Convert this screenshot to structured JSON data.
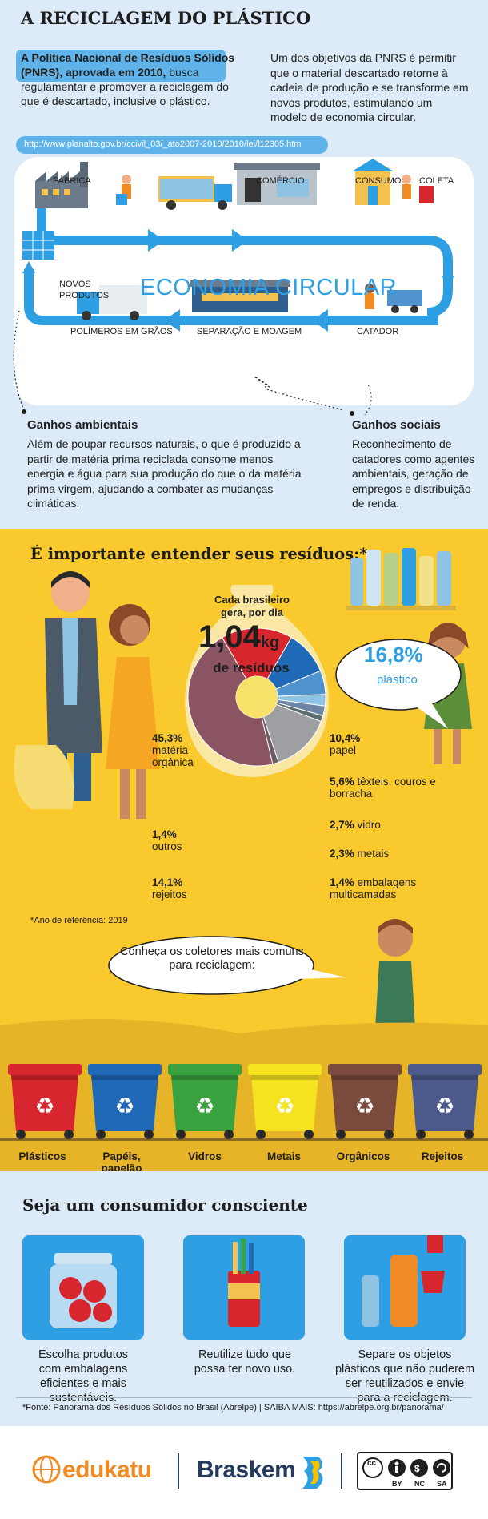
{
  "header": {
    "title": "A RECICLAGEM DO PLÁSTICO",
    "pnrs_bold": "A Política Nacional de Resíduos Sólidos (PNRS), aprovada em 2010,",
    "pnrs_rest": "busca regulamentar e promover a reciclagem do que é descartado, inclusive o plástico.",
    "objective": "Um dos objetivos da PNRS é permitir que o material descartado retorne à cadeia de produção e se transforme em novos produtos, estimulando um modelo de economia circular.",
    "url": "http://www.planalto.gov.br/ccivil_03/_ato2007-2010/2010/lei/l12305.htm"
  },
  "cycle": {
    "center_label": "ECONOMIA CIRCULAR",
    "stages": {
      "fabrica": "FÁBRICA",
      "comercio": "COMÉRCIO",
      "consumo": "CONSUMO",
      "coleta": "COLETA",
      "novos_produtos": "NOVOS PRODUTOS",
      "polimeros": "POLÍMEROS EM GRÃOS",
      "separacao": "SEPARAÇÃO E MOAGEM",
      "catador": "CATADOR"
    }
  },
  "gains": {
    "env_title": "Ganhos ambientais",
    "env_text": "Além de poupar recursos naturais, o que é produzido a partir de matéria prima reciclada consome menos energia e água para sua produção do que o da matéria prima virgem, ajudando a combater as mudanças climáticas.",
    "soc_title": "Ganhos sociais",
    "soc_text": "Reconhecimento de catadores como agentes ambientais, geração de empregos e distribuição de renda."
  },
  "waste": {
    "title": "É importante entender seus resíduos:*",
    "percap_a": "Cada brasileiro gera, por dia",
    "percap_value": "1,04",
    "percap_unit": "kg",
    "percap_c": "de resíduos",
    "plastic_pct": "16,8%",
    "plastic_lbl": "plástico",
    "note": "*Ano de referência: 2019",
    "bubble": "Conheça os coletores mais comuns para reciclagem:",
    "labels": {
      "organica_pct": "45,3%",
      "organica_txt": "matéria orgânica",
      "outros_pct": "1,4%",
      "outros_txt": "outros",
      "rejeitos_pct": "14,1%",
      "rejeitos_txt": "rejeitos",
      "papel_pct": "10,4%",
      "papel_txt": "papel",
      "texteis_pct": "5,6%",
      "texteis_txt": "têxteis, couros e borracha",
      "vidro_pct": "2,7%",
      "vidro_txt": "vidro",
      "metais_pct": "2,3%",
      "metais_txt": "metais",
      "multi_pct": "1,4%",
      "multi_txt": "embalagens multicamadas"
    },
    "bins": [
      "Plásticos",
      "Papéis, papelão",
      "Vidros",
      "Metais",
      "Orgânicos",
      "Rejeitos"
    ],
    "bin_colors": [
      "#d7262e",
      "#1f69b7",
      "#3aa23f",
      "#f5e31f",
      "#7a4a3c",
      "#4b5a8a"
    ]
  },
  "chart_data": {
    "type": "pie",
    "title": "",
    "categories": [
      "plástico",
      "papel",
      "têxteis, couros e borracha",
      "vidro",
      "metais",
      "embalagens multicamadas",
      "rejeitos",
      "outros",
      "matéria orgânica"
    ],
    "values": [
      16.8,
      10.4,
      5.6,
      2.7,
      2.3,
      1.4,
      14.1,
      1.4,
      45.3
    ],
    "colors": [
      "#d7262e",
      "#1f69b7",
      "#4f93cf",
      "#8fc3e4",
      "#6d86a8",
      "#5c6e6f",
      "#9e9fa3",
      "#6b5b63",
      "#8a5462"
    ],
    "unit": "%"
  },
  "consumer": {
    "title": "Seja um consumidor consciente",
    "tips": [
      "Escolha produtos com embalagens eficientes e mais sustentáveis.",
      "Reutilize tudo que possa ter novo uso.",
      "Separe os objetos plásticos que não puderem ser reutilizados e envie para a reciclagem."
    ],
    "source": "*Fonte: Panorama dos Resíduos Sólidos no Brasil  (Abrelpe)  |  SAIBA MAIS: https://abrelpe.org.br/panorama/"
  },
  "logos": {
    "edukatu": "edukatu",
    "braskem": "Braskem",
    "cc": "cc",
    "cc_by": "BY",
    "cc_nc": "NC",
    "cc_sa": "SA"
  }
}
